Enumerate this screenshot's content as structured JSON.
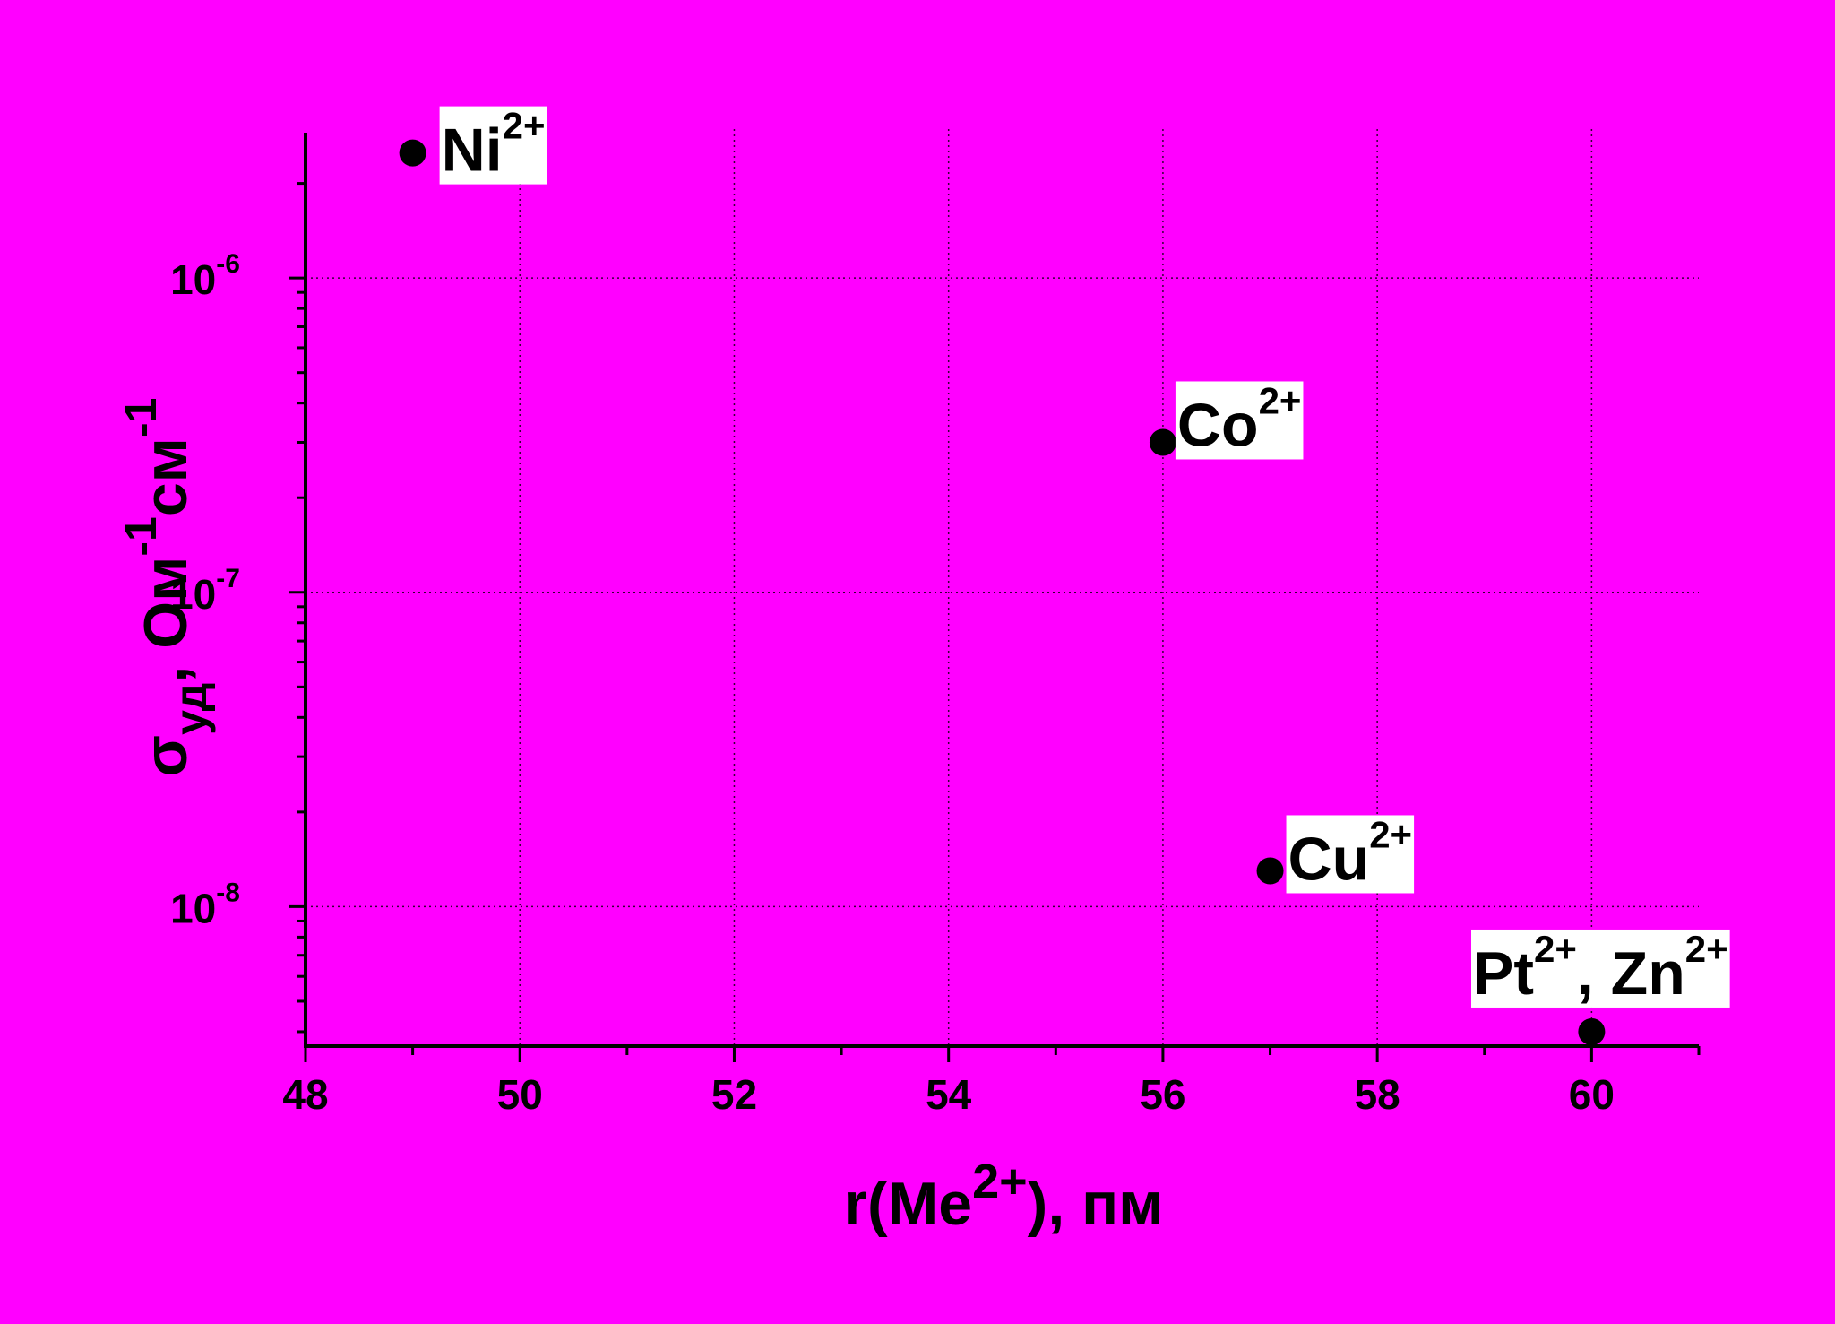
{
  "colors": {
    "background": "#FF00FF",
    "marks": "#000000",
    "label_box": "#FFFFFF"
  },
  "chart_data": {
    "type": "scatter",
    "title": "",
    "xlabel": {
      "base": "r(Me",
      "sup": "2+",
      "tail": "), пм"
    },
    "ylabel": {
      "parts": [
        {
          "t": "σ",
          "s": "n"
        },
        {
          "t": "уд",
          "s": "sub"
        },
        {
          "t": ", Ом",
          "s": "n"
        },
        {
          "t": "-1",
          "s": "sup"
        },
        {
          "t": "см",
          "s": "n"
        },
        {
          "t": "-1",
          "s": "sup"
        }
      ]
    },
    "xlim": [
      48,
      61
    ],
    "ylim": [
      3.6e-09,
      2.9e-06
    ],
    "yscale": "log",
    "grid": true,
    "xticks": [
      {
        "v": 48,
        "label": "48"
      },
      {
        "v": 50,
        "label": "50"
      },
      {
        "v": 52,
        "label": "52"
      },
      {
        "v": 54,
        "label": "54"
      },
      {
        "v": 56,
        "label": "56"
      },
      {
        "v": 58,
        "label": "58"
      },
      {
        "v": 60,
        "label": "60"
      }
    ],
    "yticks": [
      {
        "v": 1e-08,
        "base": "10",
        "exp": "-8"
      },
      {
        "v": 1e-07,
        "base": "10",
        "exp": "-7"
      },
      {
        "v": 1e-06,
        "base": "10",
        "exp": "-6"
      }
    ],
    "points": [
      {
        "x": 49,
        "y": 2.5e-06,
        "label": [
          {
            "t": "Ni",
            "s": "n"
          },
          {
            "t": "2+",
            "s": "sup"
          }
        ]
      },
      {
        "x": 56,
        "y": 3e-07,
        "label": [
          {
            "t": "Co",
            "s": "n"
          },
          {
            "t": "2+",
            "s": "sup"
          }
        ]
      },
      {
        "x": 57,
        "y": 1.3e-08,
        "label": [
          {
            "t": "Cu",
            "s": "n"
          },
          {
            "t": "2+",
            "s": "sup"
          }
        ]
      },
      {
        "x": 60,
        "y": 4e-09,
        "label": [
          {
            "t": "Pt",
            "s": "n"
          },
          {
            "t": "2+",
            "s": "sup"
          },
          {
            "t": ", Zn",
            "s": "n"
          },
          {
            "t": "2+",
            "s": "sup"
          }
        ]
      }
    ]
  }
}
